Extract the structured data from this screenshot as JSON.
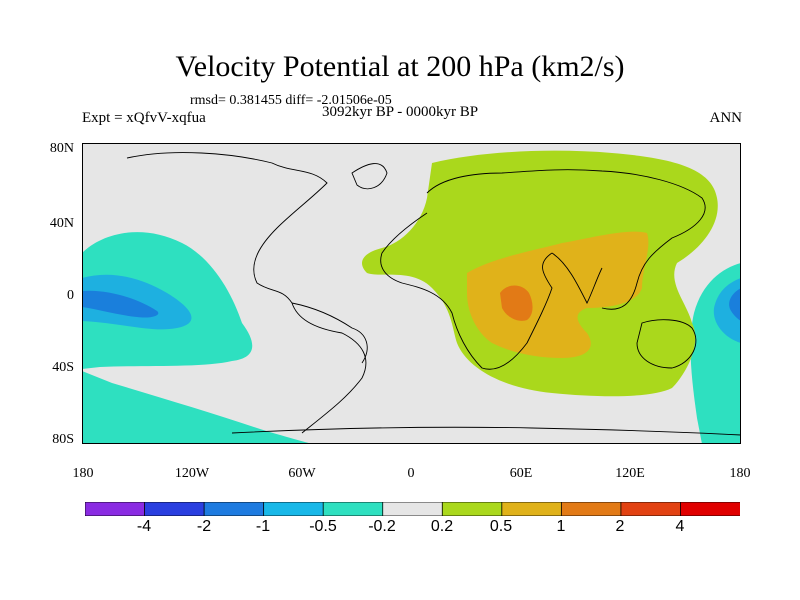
{
  "title": "Velocity Potential at 200 hPa (km2/s)",
  "stats": "rmsd= 0.381455 diff= -2.01506e-05",
  "experiment": "Expt = xQfvV-xqfua",
  "period": "3092kyr BP - 0000kyr BP",
  "season": "ANN",
  "map": {
    "lat_labels": [
      "80N",
      "40N",
      "0",
      "40S",
      "80S"
    ],
    "lon_labels": [
      "180",
      "120W",
      "60W",
      "0",
      "60E",
      "120E",
      "180"
    ],
    "ocean_color": "#e6e6e6",
    "features": [
      {
        "name": "negative-anomaly-east-pacific-outer",
        "level": "-0.5"
      },
      {
        "name": "negative-anomaly-east-pacific-core",
        "level": "-1"
      },
      {
        "name": "negative-anomaly-west-pacific",
        "level": "-0.5"
      },
      {
        "name": "positive-anomaly-eurasia-africa",
        "level": "0.2"
      },
      {
        "name": "positive-anomaly-india-africa",
        "level": "0.5"
      },
      {
        "name": "positive-anomaly-east-africa-core",
        "level": "1"
      }
    ]
  },
  "colorbar": {
    "colors": [
      "#8a2be2",
      "#2a3fe0",
      "#1e7be0",
      "#19b8e8",
      "#2ee0c0",
      "#e6e6e6",
      "#aad81c",
      "#e0b21a",
      "#e27a16",
      "#e24212",
      "#e00000"
    ],
    "labels": [
      "-4",
      "-2",
      "-1",
      "-0.5",
      "-0.2",
      "0.2",
      "0.5",
      "1",
      "2",
      "4"
    ]
  }
}
